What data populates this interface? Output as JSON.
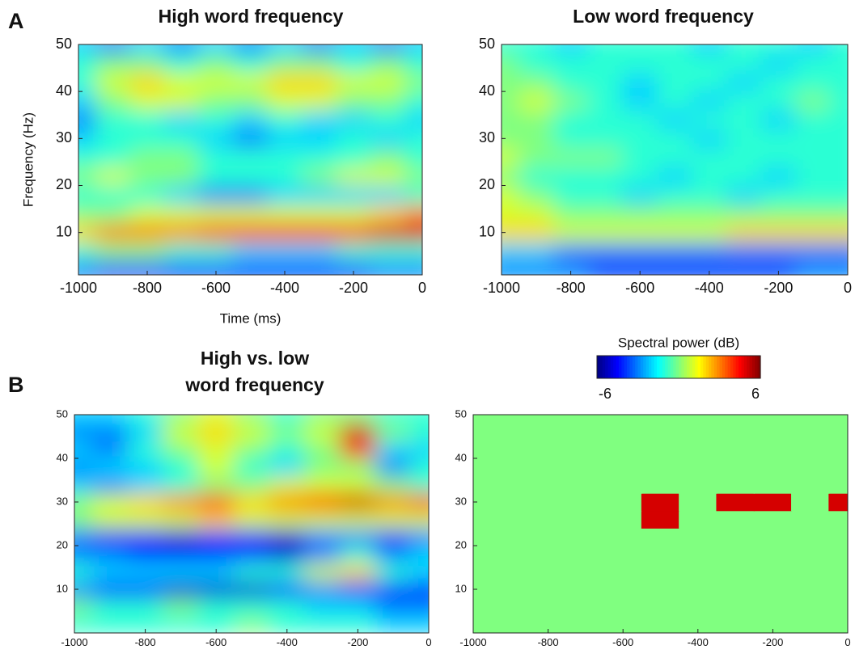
{
  "chart_data": [
    {
      "type": "contour",
      "panel_label": "A",
      "title": [
        "High word frequency"
      ],
      "xlabel": "Time (ms)",
      "ylabel": "Frequency (Hz)",
      "xlim": [
        -1000,
        0
      ],
      "ylim": [
        1,
        50
      ],
      "xticks": [
        -1000,
        -800,
        -600,
        -400,
        -200,
        0
      ],
      "yticks": [
        10,
        20,
        30,
        40,
        50
      ],
      "x": [
        -1000,
        -900,
        -800,
        -700,
        -600,
        -500,
        -400,
        -300,
        -200,
        -100,
        0
      ],
      "y": [
        2,
        6,
        10,
        14,
        18,
        22,
        26,
        30,
        34,
        38,
        42,
        46,
        50
      ],
      "z": [
        [
          -3,
          -4,
          -4,
          -4,
          -4,
          -4,
          -4,
          -4,
          -4,
          -3,
          -3
        ],
        [
          -1,
          0,
          0,
          -1,
          -1,
          -2,
          -2,
          -2,
          -1,
          -1,
          -1
        ],
        [
          2,
          3,
          3,
          3,
          4,
          4,
          4,
          4,
          4,
          5,
          5
        ],
        [
          0,
          0,
          1,
          1,
          1,
          1,
          1,
          1,
          1,
          2,
          3
        ],
        [
          -1,
          -1,
          -1,
          -2,
          -3,
          -3,
          -2,
          -2,
          -2,
          -2,
          -1
        ],
        [
          0,
          1,
          0,
          0,
          -1,
          -1,
          -1,
          0,
          1,
          1,
          0
        ],
        [
          -1,
          -1,
          0,
          0,
          -1,
          -1,
          -1,
          -1,
          -1,
          0,
          -1
        ],
        [
          -2,
          -1,
          -1,
          -1,
          -2,
          -3,
          -2,
          -2,
          -1,
          -2,
          -1
        ],
        [
          -3,
          -1,
          -1,
          -2,
          -1,
          -2,
          -1,
          -2,
          -2,
          -1,
          -2
        ],
        [
          -2,
          0,
          1,
          1,
          0,
          0,
          1,
          1,
          0,
          0,
          -1
        ],
        [
          -1,
          1,
          2,
          1,
          1,
          1,
          2,
          2,
          1,
          1,
          0
        ],
        [
          -1,
          0,
          0,
          -1,
          0,
          -1,
          0,
          0,
          -1,
          0,
          -1
        ],
        [
          -2,
          -3,
          -2,
          -3,
          -2,
          -3,
          -2,
          -3,
          -2,
          -3,
          -2
        ]
      ]
    },
    {
      "type": "contour",
      "title": [
        "Low word frequency"
      ],
      "xlim": [
        -1000,
        0
      ],
      "ylim": [
        1,
        50
      ],
      "xticks": [
        -1000,
        -800,
        -600,
        -400,
        -200,
        0
      ],
      "yticks": [
        10,
        20,
        30,
        40,
        50
      ],
      "x": [
        -1000,
        -900,
        -800,
        -700,
        -600,
        -500,
        -400,
        -300,
        -200,
        -100,
        0
      ],
      "y": [
        2,
        6,
        10,
        14,
        18,
        22,
        26,
        30,
        34,
        38,
        42,
        46,
        50
      ],
      "z": [
        [
          -3,
          -3,
          -3,
          -4,
          -4,
          -4,
          -4,
          -4,
          -4,
          -3,
          -3
        ],
        [
          -2,
          -2,
          -3,
          -3,
          -3,
          -3,
          -3,
          -3,
          -3,
          -3,
          -3
        ],
        [
          2,
          2,
          1,
          1,
          1,
          1,
          1,
          2,
          2,
          2,
          2
        ],
        [
          1,
          1,
          0,
          0,
          0,
          0,
          0,
          0,
          0,
          0,
          0
        ],
        [
          1,
          0,
          -1,
          -1,
          -2,
          -1,
          -1,
          -2,
          -1,
          -1,
          -1
        ],
        [
          0,
          -1,
          -1,
          -1,
          -1,
          -2,
          -1,
          -1,
          -2,
          -1,
          -1
        ],
        [
          1,
          0,
          0,
          0,
          -1,
          -1,
          -1,
          -1,
          -1,
          -1,
          -1
        ],
        [
          0,
          0,
          -1,
          -1,
          -1,
          -1,
          -2,
          -1,
          -1,
          -1,
          -1
        ],
        [
          0,
          0,
          -1,
          -1,
          -1,
          -2,
          -1,
          -1,
          -2,
          -1,
          -1
        ],
        [
          0,
          1,
          0,
          -1,
          -2,
          -1,
          -2,
          -1,
          -1,
          0,
          -1
        ],
        [
          0,
          0,
          -1,
          -1,
          -2,
          -1,
          -1,
          -2,
          -1,
          -1,
          -1
        ],
        [
          0,
          -1,
          -1,
          -1,
          -1,
          -1,
          -1,
          -1,
          -2,
          -1,
          -1
        ],
        [
          -1,
          -1,
          -2,
          -1,
          -1,
          -1,
          -2,
          -1,
          -1,
          -2,
          -1
        ]
      ]
    },
    {
      "type": "contour",
      "panel_label": "B",
      "title": [
        "High vs. low",
        "word frequency"
      ],
      "xlim": [
        -1000,
        0
      ],
      "ylim": [
        0,
        50
      ],
      "xticks": [
        -1000,
        -800,
        -600,
        -400,
        -200,
        0
      ],
      "yticks": [
        10,
        20,
        30,
        40,
        50
      ],
      "x": [
        -1000,
        -900,
        -800,
        -700,
        -600,
        -500,
        -400,
        -300,
        -200,
        -100,
        0
      ],
      "y": [
        2,
        6,
        10,
        14,
        18,
        22,
        26,
        30,
        34,
        38,
        42,
        46,
        50
      ],
      "z": [
        [
          -1,
          -1,
          -1,
          -1,
          -1,
          0,
          -1,
          -1,
          -1,
          -2,
          -2
        ],
        [
          0,
          -1,
          -1,
          0,
          -1,
          -1,
          -1,
          -2,
          -2,
          -3,
          -3
        ],
        [
          -3,
          -4,
          -4,
          -5,
          -5,
          -5,
          -4,
          -3,
          -4,
          -4,
          -4
        ],
        [
          -1,
          -2,
          -2,
          -2,
          -2,
          -1,
          -1,
          1,
          2,
          -1,
          -2
        ],
        [
          -3,
          -3,
          -4,
          -4,
          -4,
          -4,
          -5,
          -3,
          -1,
          -3,
          -2
        ],
        [
          -3,
          -4,
          -4,
          -5,
          -4,
          -4,
          -5,
          -3,
          -3,
          -4,
          -3
        ],
        [
          0,
          1,
          1,
          1,
          2,
          1,
          1,
          1,
          1,
          1,
          1
        ],
        [
          0,
          1,
          2,
          3,
          4,
          2,
          3,
          4,
          5,
          3,
          4
        ],
        [
          -2,
          -3,
          -2,
          -1,
          0,
          0,
          1,
          1,
          1,
          0,
          -1
        ],
        [
          -3,
          -2,
          -2,
          -1,
          1,
          -1,
          -2,
          0,
          0,
          -3,
          -1
        ],
        [
          -2,
          -3,
          -1,
          0,
          1,
          0,
          -1,
          0,
          4,
          -2,
          -2
        ],
        [
          -3,
          -3,
          -2,
          1,
          2,
          1,
          0,
          1,
          5,
          0,
          -1
        ],
        [
          -2,
          -2,
          -1,
          0,
          1,
          0,
          -1,
          0,
          0,
          -1,
          -1
        ]
      ]
    },
    {
      "type": "heatmap",
      "xlim": [
        -1000,
        0
      ],
      "ylim": [
        0,
        50
      ],
      "xticks": [
        -1000,
        -800,
        -600,
        -400,
        -200,
        0
      ],
      "yticks": [
        10,
        20,
        30,
        40,
        50
      ],
      "x": [
        -1000,
        -900,
        -800,
        -700,
        -600,
        -500,
        -400,
        -300,
        -200,
        -100,
        0
      ],
      "y": [
        2,
        6,
        10,
        14,
        18,
        22,
        26,
        30,
        34,
        38,
        42,
        46,
        50
      ],
      "z": [
        [
          0,
          0,
          0,
          0,
          0,
          0,
          0,
          0,
          0,
          0,
          0
        ],
        [
          0,
          0,
          0,
          0,
          0,
          0,
          0,
          0,
          0,
          0,
          0
        ],
        [
          0,
          0,
          0,
          0,
          0,
          0,
          0,
          0,
          0,
          0,
          0
        ],
        [
          0,
          0,
          0,
          0,
          0,
          0,
          0,
          0,
          0,
          0,
          0
        ],
        [
          0,
          0,
          0,
          0,
          0,
          0,
          0,
          0,
          0,
          0,
          0
        ],
        [
          0,
          0,
          0,
          0,
          0,
          0,
          0,
          0,
          0,
          0,
          0
        ],
        [
          0,
          0,
          0,
          0,
          0,
          5,
          0,
          0,
          0,
          0,
          0
        ],
        [
          0,
          0,
          0,
          0,
          0,
          5,
          0,
          5,
          5,
          0,
          5
        ],
        [
          0,
          0,
          0,
          0,
          0,
          0,
          0,
          0,
          0,
          0,
          0
        ],
        [
          0,
          0,
          0,
          0,
          0,
          0,
          0,
          0,
          0,
          0,
          0
        ],
        [
          0,
          0,
          0,
          0,
          0,
          0,
          0,
          0,
          0,
          0,
          0
        ],
        [
          0,
          0,
          0,
          0,
          0,
          0,
          0,
          0,
          0,
          0,
          0
        ],
        [
          0,
          0,
          0,
          0,
          0,
          0,
          0,
          0,
          0,
          0,
          0
        ]
      ]
    },
    {
      "type": "colorbar",
      "title": [
        "Spectral power (dB)"
      ],
      "lim": [
        -6,
        6
      ],
      "ticks": [
        -6,
        6
      ]
    }
  ]
}
